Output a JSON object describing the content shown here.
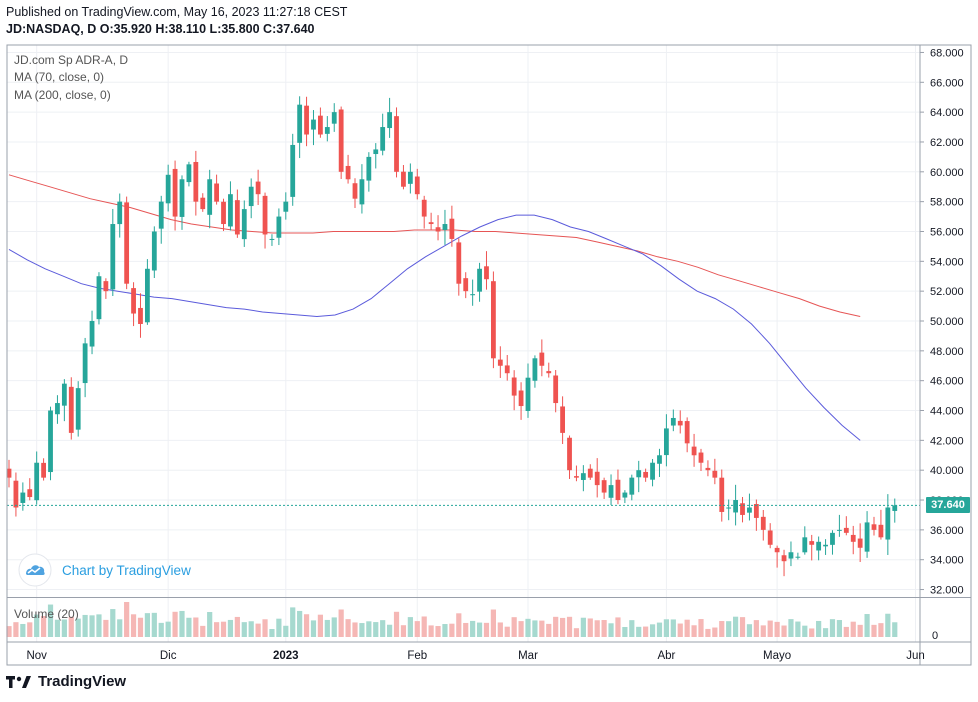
{
  "header": {
    "published": "Published on TradingView.com, May 16, 2023 11:27:18 CEST",
    "symbol_line": "JD:NASDAQ, D  O:35.920 H:38.110 L:35.800 C:37.640"
  },
  "legend": {
    "title": "JD.com Sp ADR-A, D",
    "ma70": "MA (70, close, 0)",
    "ma200": "MA (200, close, 0)"
  },
  "volume_label": "Volume (20)",
  "watermark": "Chart by TradingView",
  "footer": "TradingView",
  "last_price_label": "37.640",
  "colors": {
    "up": "#26a69a",
    "down": "#ef5350",
    "ma70": "#5b5bdb",
    "ma200": "#e65555",
    "grid": "#eef0f4",
    "brand": "#2a9ee0"
  },
  "chart_data": {
    "type": "candlestick",
    "title": "JD.com Sp ADR-A, D",
    "ylim": [
      31.5,
      68.5
    ],
    "y_ticks": [
      "68.000",
      "66.000",
      "64.000",
      "62.000",
      "60.000",
      "58.000",
      "56.000",
      "54.000",
      "52.000",
      "50.000",
      "48.000",
      "46.000",
      "44.000",
      "42.000",
      "40.000",
      "38.000",
      "36.000",
      "34.000",
      "32.000"
    ],
    "x_labels": [
      "Nov",
      "Dic",
      "2023",
      "Feb",
      "Mar",
      "Abr",
      "Mayo",
      "Jun"
    ],
    "x_label_positions": [
      4,
      23,
      40,
      59,
      75,
      95,
      111,
      131
    ],
    "volume_zero_label": "0",
    "last_close": 37.64,
    "closes": [
      39.5,
      37.5,
      38.5,
      38.2,
      40.5,
      39.5,
      44.0,
      44.5,
      45.8,
      42.5,
      45.5,
      48.5,
      50.0,
      53.0,
      52.0,
      56.5,
      58.0,
      52.5,
      50.5,
      49.8,
      53.5,
      56.0,
      58.0,
      59.8,
      57.0,
      59.5,
      60.5,
      58.0,
      57.5,
      59.5,
      58.0,
      56.5,
      58.5,
      55.8,
      57.5,
      59.0,
      58.5,
      55.8,
      55.5,
      57.0,
      58.0,
      61.8,
      64.5,
      62.5,
      63.5,
      62.5,
      63.0,
      64.0,
      60.0,
      59.5,
      58.2,
      59.5,
      61.0,
      61.5,
      63.0,
      64.0,
      60.0,
      59.0,
      60.0,
      58.5,
      57.0,
      56.5,
      56.0,
      56.5,
      55.5,
      52.5,
      52.0,
      51.8,
      53.5,
      52.8,
      47.5,
      47.0,
      46.5,
      45.0,
      44.3,
      46.2,
      47.5,
      47.0,
      46.5,
      44.5,
      42.5,
      40.0,
      39.5,
      39.8,
      39.5,
      39.0,
      38.5,
      39.0,
      38.0,
      38.5,
      39.5,
      40.0,
      39.5,
      40.5,
      41.0,
      42.8,
      43.5,
      43.0,
      41.8,
      41.0,
      40.5,
      40.0,
      39.5,
      37.2,
      37.5,
      38.0,
      37.0,
      37.5,
      36.8,
      36.0,
      35.0,
      34.5,
      33.9,
      34.5,
      34.2,
      35.5,
      35.0,
      35.2,
      35.0,
      35.8,
      36.0,
      35.8,
      35.2,
      34.8,
      36.5,
      36.0,
      35.5,
      37.5,
      37.64
    ],
    "ma70": {
      "name": "MA (70, close, 0)",
      "start": 0,
      "end": 123,
      "values": [
        54.8,
        54.1,
        53.5,
        53.0,
        52.5,
        52.2,
        52.0,
        51.8,
        51.6,
        51.5,
        51.3,
        51.1,
        50.9,
        50.8,
        50.6,
        50.5,
        50.4,
        50.3,
        50.4,
        50.8,
        51.5,
        52.5,
        53.5,
        54.3,
        55.0,
        55.7,
        56.3,
        56.8,
        57.1,
        57.1,
        56.8,
        56.3,
        56.0,
        55.5,
        55.0,
        54.5,
        53.7,
        52.8,
        52.0,
        51.5,
        50.8,
        49.8,
        48.5,
        47.0,
        45.5,
        44.2,
        43.0,
        42.0
      ]
    },
    "ma200": {
      "name": "MA (200, close, 0)",
      "start": 0,
      "end": 123,
      "values": [
        59.8,
        59.4,
        59.0,
        58.6,
        58.2,
        57.9,
        57.6,
        57.2,
        56.8,
        56.5,
        56.3,
        56.1,
        56.0,
        55.9,
        55.9,
        55.9,
        56.0,
        56.0,
        56.0,
        56.0,
        56.1,
        56.1,
        56.1,
        56.0,
        56.0,
        55.9,
        55.8,
        55.7,
        55.6,
        55.3,
        55.0,
        54.7,
        54.3,
        54.0,
        53.6,
        53.1,
        52.7,
        52.3,
        51.9,
        51.5,
        51.0,
        50.6,
        50.3
      ]
    },
    "volume_ylim": [
      0,
      100
    ]
  }
}
